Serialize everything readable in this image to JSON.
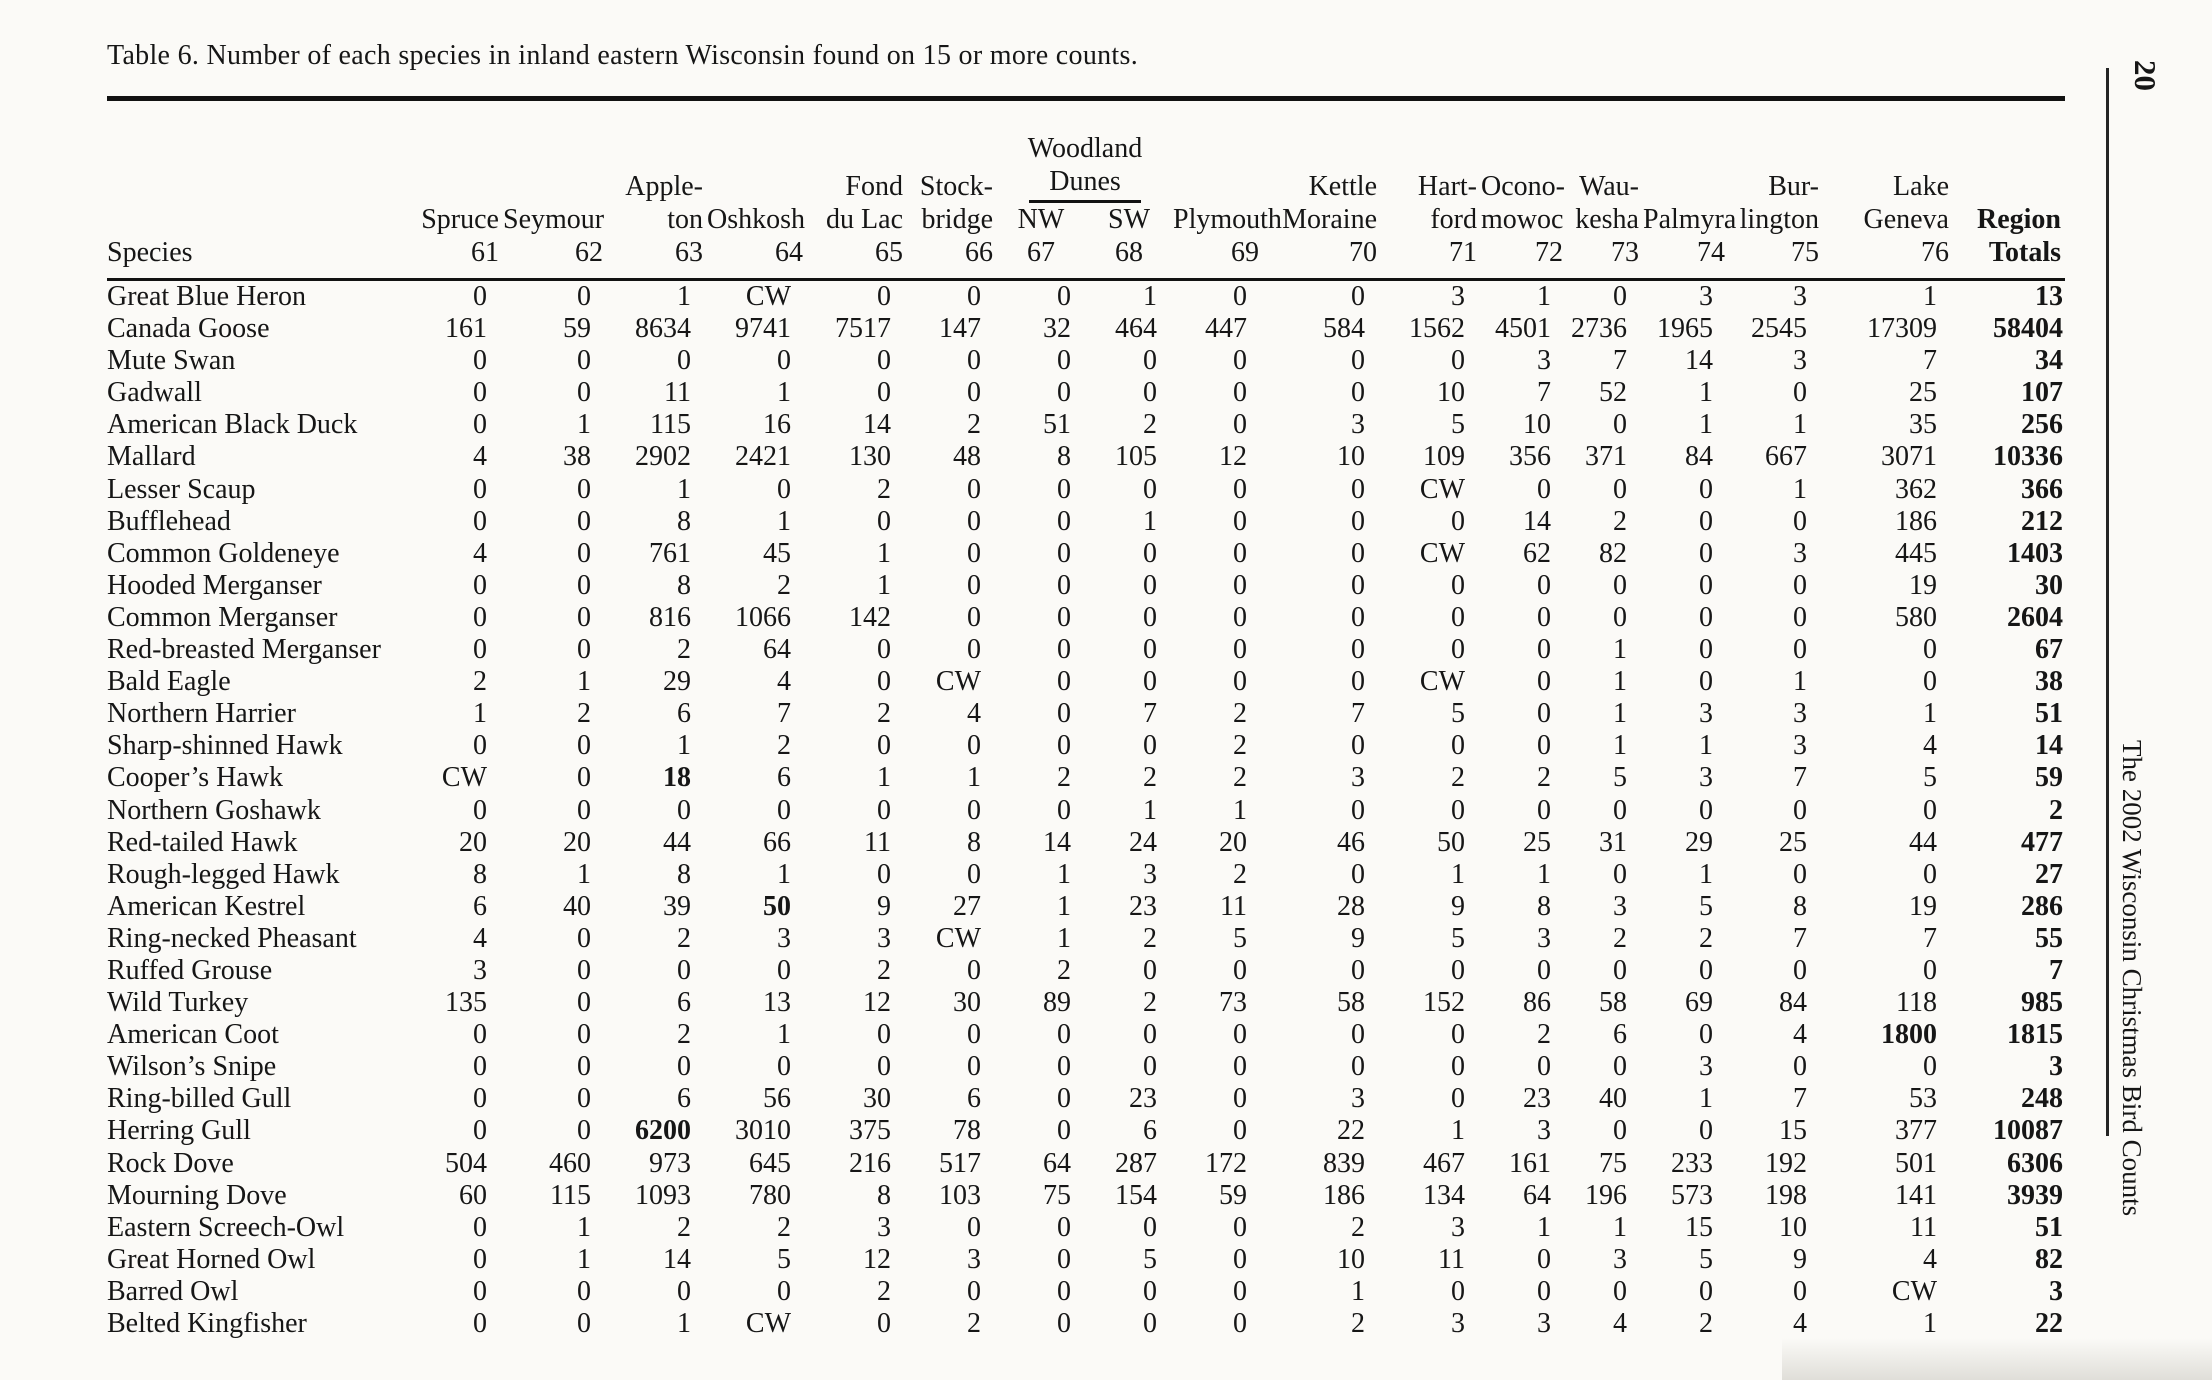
{
  "page": {
    "title": "Table 6. Number of each species in inland eastern Wisconsin found on 15 or more counts.",
    "page_number": "20",
    "side_caption": "The 2002 Wisconsin Christmas Bird Counts"
  },
  "table": {
    "species_header": "Species",
    "columns": [
      {
        "id": "spruce",
        "lines": [
          "Spruce"
        ],
        "num": "61"
      },
      {
        "id": "seymour",
        "lines": [
          "Seymour"
        ],
        "num": "62"
      },
      {
        "id": "appleton",
        "lines": [
          "Apple-",
          "ton"
        ],
        "num": "63"
      },
      {
        "id": "oshkosh",
        "lines": [
          "Oshkosh"
        ],
        "num": "64"
      },
      {
        "id": "fond-du-lac",
        "lines": [
          "Fond",
          "du Lac"
        ],
        "num": "65"
      },
      {
        "id": "stockbridge",
        "lines": [
          "Stock-",
          "bridge"
        ],
        "num": "66"
      },
      {
        "id": "woodland-dunes",
        "group": true,
        "group_lines": [
          "Woodland",
          "Dunes"
        ],
        "subcols": [
          {
            "id": "woodland-dunes-nw",
            "label": "NW",
            "num": "67"
          },
          {
            "id": "woodland-dunes-sw",
            "label": "SW",
            "num": "68"
          }
        ]
      },
      {
        "id": "plymouth",
        "lines": [
          "Plymouth"
        ],
        "num": "69"
      },
      {
        "id": "kettle-moraine",
        "lines": [
          "Kettle",
          "Moraine"
        ],
        "num": "70"
      },
      {
        "id": "hartford",
        "lines": [
          "Hart-",
          "ford"
        ],
        "num": "71"
      },
      {
        "id": "oconomowoc",
        "lines": [
          "Ocono-",
          "mowoc"
        ],
        "num": "72"
      },
      {
        "id": "waukesha",
        "lines": [
          "Wau-",
          "kesha"
        ],
        "num": "73"
      },
      {
        "id": "palmyra",
        "lines": [
          "Palmyra"
        ],
        "num": "74"
      },
      {
        "id": "burlington",
        "lines": [
          "Bur-",
          "lington"
        ],
        "num": "75"
      },
      {
        "id": "lake-geneva",
        "lines": [
          "Lake",
          "Geneva"
        ],
        "num": "76"
      },
      {
        "id": "region-totals",
        "lines": [
          "Region"
        ],
        "num": "Totals",
        "bold": true
      }
    ],
    "rows": [
      {
        "species": "Great Blue Heron",
        "values": [
          "0",
          "0",
          "1",
          "CW",
          "0",
          "0",
          "0",
          "1",
          "0",
          "0",
          "3",
          "1",
          "0",
          "3",
          "3",
          "1",
          "13"
        ]
      },
      {
        "species": "Canada Goose",
        "values": [
          "161",
          "59",
          "8634",
          "9741",
          "7517",
          "147",
          "32",
          "464",
          "447",
          "584",
          "1562",
          "4501",
          "2736",
          "1965",
          "2545",
          "17309",
          "58404"
        ]
      },
      {
        "species": "Mute Swan",
        "values": [
          "0",
          "0",
          "0",
          "0",
          "0",
          "0",
          "0",
          "0",
          "0",
          "0",
          "0",
          "3",
          "7",
          "14",
          "3",
          "7",
          "34"
        ]
      },
      {
        "species": "Gadwall",
        "values": [
          "0",
          "0",
          "11",
          "1",
          "0",
          "0",
          "0",
          "0",
          "0",
          "0",
          "10",
          "7",
          "52",
          "1",
          "0",
          "25",
          "107"
        ]
      },
      {
        "species": "American Black Duck",
        "values": [
          "0",
          "1",
          "115",
          "16",
          "14",
          "2",
          "51",
          "2",
          "0",
          "3",
          "5",
          "10",
          "0",
          "1",
          "1",
          "35",
          "256"
        ]
      },
      {
        "species": "Mallard",
        "values": [
          "4",
          "38",
          "2902",
          "2421",
          "130",
          "48",
          "8",
          "105",
          "12",
          "10",
          "109",
          "356",
          "371",
          "84",
          "667",
          "3071",
          "10336"
        ]
      },
      {
        "species": "Lesser Scaup",
        "values": [
          "0",
          "0",
          "1",
          "0",
          "2",
          "0",
          "0",
          "0",
          "0",
          "0",
          "CW",
          "0",
          "0",
          "0",
          "1",
          "362",
          "366"
        ]
      },
      {
        "species": "Bufflehead",
        "values": [
          "0",
          "0",
          "8",
          "1",
          "0",
          "0",
          "0",
          "1",
          "0",
          "0",
          "0",
          "14",
          "2",
          "0",
          "0",
          "186",
          "212"
        ]
      },
      {
        "species": "Common Goldeneye",
        "values": [
          "4",
          "0",
          "761",
          "45",
          "1",
          "0",
          "0",
          "0",
          "0",
          "0",
          "CW",
          "62",
          "82",
          "0",
          "3",
          "445",
          "1403"
        ]
      },
      {
        "species": "Hooded Merganser",
        "values": [
          "0",
          "0",
          "8",
          "2",
          "1",
          "0",
          "0",
          "0",
          "0",
          "0",
          "0",
          "0",
          "0",
          "0",
          "0",
          "19",
          "30"
        ]
      },
      {
        "species": "Common Merganser",
        "values": [
          "0",
          "0",
          "816",
          "1066",
          "142",
          "0",
          "0",
          "0",
          "0",
          "0",
          "0",
          "0",
          "0",
          "0",
          "0",
          "580",
          "2604"
        ]
      },
      {
        "species": "Red-breasted Merganser",
        "values": [
          "0",
          "0",
          "2",
          "64",
          "0",
          "0",
          "0",
          "0",
          "0",
          "0",
          "0",
          "0",
          "1",
          "0",
          "0",
          "0",
          "67"
        ]
      },
      {
        "species": "Bald Eagle",
        "values": [
          "2",
          "1",
          "29",
          "4",
          "0",
          "CW",
          "0",
          "0",
          "0",
          "0",
          "CW",
          "0",
          "1",
          "0",
          "1",
          "0",
          "38"
        ]
      },
      {
        "species": "Northern Harrier",
        "values": [
          "1",
          "2",
          "6",
          "7",
          "2",
          "4",
          "0",
          "7",
          "2",
          "7",
          "5",
          "0",
          "1",
          "3",
          "3",
          "1",
          "51"
        ]
      },
      {
        "species": "Sharp-shinned Hawk",
        "values": [
          "0",
          "0",
          "1",
          "2",
          "0",
          "0",
          "0",
          "0",
          "2",
          "0",
          "0",
          "0",
          "1",
          "1",
          "3",
          "4",
          "14"
        ]
      },
      {
        "species": "Cooper’s Hawk",
        "values": [
          "CW",
          "0",
          "18",
          "6",
          "1",
          "1",
          "2",
          "2",
          "2",
          "3",
          "2",
          "2",
          "5",
          "3",
          "7",
          "5",
          "59"
        ]
      },
      {
        "species": "Northern Goshawk",
        "values": [
          "0",
          "0",
          "0",
          "0",
          "0",
          "0",
          "0",
          "1",
          "1",
          "0",
          "0",
          "0",
          "0",
          "0",
          "0",
          "0",
          "2"
        ]
      },
      {
        "species": "Red-tailed Hawk",
        "values": [
          "20",
          "20",
          "44",
          "66",
          "11",
          "8",
          "14",
          "24",
          "20",
          "46",
          "50",
          "25",
          "31",
          "29",
          "25",
          "44",
          "477"
        ]
      },
      {
        "species": "Rough-legged Hawk",
        "values": [
          "8",
          "1",
          "8",
          "1",
          "0",
          "0",
          "1",
          "3",
          "2",
          "0",
          "1",
          "1",
          "0",
          "1",
          "0",
          "0",
          "27"
        ]
      },
      {
        "species": "American Kestrel",
        "values": [
          "6",
          "40",
          "39",
          "50",
          "9",
          "27",
          "1",
          "23",
          "11",
          "28",
          "9",
          "8",
          "3",
          "5",
          "8",
          "19",
          "286"
        ]
      },
      {
        "species": "Ring-necked Pheasant",
        "values": [
          "4",
          "0",
          "2",
          "3",
          "3",
          "CW",
          "1",
          "2",
          "5",
          "9",
          "5",
          "3",
          "2",
          "2",
          "7",
          "7",
          "55"
        ]
      },
      {
        "species": "Ruffed Grouse",
        "values": [
          "3",
          "0",
          "0",
          "0",
          "2",
          "0",
          "2",
          "0",
          "0",
          "0",
          "0",
          "0",
          "0",
          "0",
          "0",
          "0",
          "7"
        ]
      },
      {
        "species": "Wild Turkey",
        "values": [
          "135",
          "0",
          "6",
          "13",
          "12",
          "30",
          "89",
          "2",
          "73",
          "58",
          "152",
          "86",
          "58",
          "69",
          "84",
          "118",
          "985"
        ]
      },
      {
        "species": "American Coot",
        "values": [
          "0",
          "0",
          "2",
          "1",
          "0",
          "0",
          "0",
          "0",
          "0",
          "0",
          "0",
          "2",
          "6",
          "0",
          "4",
          "1800",
          "1815"
        ]
      },
      {
        "species": "Wilson’s Snipe",
        "values": [
          "0",
          "0",
          "0",
          "0",
          "0",
          "0",
          "0",
          "0",
          "0",
          "0",
          "0",
          "0",
          "0",
          "3",
          "0",
          "0",
          "3"
        ]
      },
      {
        "species": "Ring-billed Gull",
        "values": [
          "0",
          "0",
          "6",
          "56",
          "30",
          "6",
          "0",
          "23",
          "0",
          "3",
          "0",
          "23",
          "40",
          "1",
          "7",
          "53",
          "248"
        ]
      },
      {
        "species": "Herring Gull",
        "values": [
          "0",
          "0",
          "6200",
          "3010",
          "375",
          "78",
          "0",
          "6",
          "0",
          "22",
          "1",
          "3",
          "0",
          "0",
          "15",
          "377",
          "10087"
        ]
      },
      {
        "species": "Rock Dove",
        "values": [
          "504",
          "460",
          "973",
          "645",
          "216",
          "517",
          "64",
          "287",
          "172",
          "839",
          "467",
          "161",
          "75",
          "233",
          "192",
          "501",
          "6306"
        ]
      },
      {
        "species": "Mourning Dove",
        "values": [
          "60",
          "115",
          "1093",
          "780",
          "8",
          "103",
          "75",
          "154",
          "59",
          "186",
          "134",
          "64",
          "196",
          "573",
          "198",
          "141",
          "3939"
        ]
      },
      {
        "species": "Eastern Screech-Owl",
        "values": [
          "0",
          "1",
          "2",
          "2",
          "3",
          "0",
          "0",
          "0",
          "0",
          "2",
          "3",
          "1",
          "1",
          "15",
          "10",
          "11",
          "51"
        ]
      },
      {
        "species": "Great Horned Owl",
        "values": [
          "0",
          "1",
          "14",
          "5",
          "12",
          "3",
          "0",
          "5",
          "0",
          "10",
          "11",
          "0",
          "3",
          "5",
          "9",
          "4",
          "82"
        ]
      },
      {
        "species": "Barred Owl",
        "values": [
          "0",
          "0",
          "0",
          "0",
          "2",
          "0",
          "0",
          "0",
          "0",
          "1",
          "0",
          "0",
          "0",
          "0",
          "0",
          "CW",
          "3"
        ]
      },
      {
        "species": "Belted Kingfisher",
        "values": [
          "0",
          "0",
          "1",
          "CW",
          "0",
          "2",
          "0",
          "0",
          "0",
          "2",
          "3",
          "3",
          "4",
          "2",
          "4",
          "1",
          "22"
        ]
      }
    ],
    "bold_cells": [
      [
        15,
        2
      ],
      [
        19,
        3
      ],
      [
        23,
        15
      ],
      [
        26,
        2
      ]
    ]
  }
}
